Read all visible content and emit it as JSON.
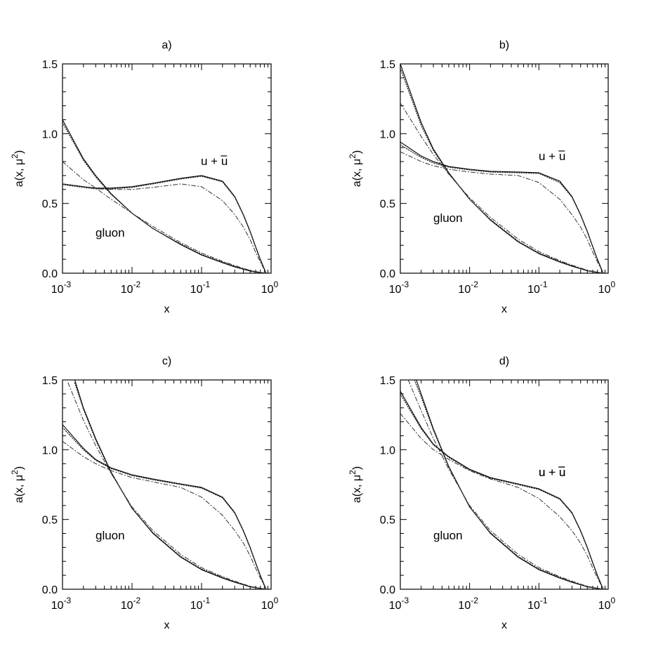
{
  "chart_data": [
    {
      "type": "line",
      "panel_label": "a)",
      "xlabel": "x",
      "ylabel": "a(x, μ2)",
      "xscale": "log",
      "xlim": [
        0.001,
        1
      ],
      "ylim": [
        0.0,
        1.5
      ],
      "xticks": [
        "10-3",
        "10-2",
        "10-1",
        "100"
      ],
      "yticks": [
        "0.0",
        "0.5",
        "1.0",
        "1.5"
      ],
      "annotations": [
        {
          "text": "u + u",
          "overbar_on": "second u"
        },
        {
          "text": "gluon"
        }
      ],
      "series": [
        {
          "group": "u+ubar",
          "style": "solid",
          "x": [
            0.001,
            0.002,
            0.003,
            0.005,
            0.01,
            0.02,
            0.05,
            0.1,
            0.2,
            0.3,
            0.4,
            0.5,
            0.6,
            0.7,
            0.8,
            0.85
          ],
          "y": [
            0.64,
            0.62,
            0.61,
            0.61,
            0.62,
            0.645,
            0.68,
            0.7,
            0.66,
            0.55,
            0.42,
            0.3,
            0.19,
            0.1,
            0.03,
            0.0
          ]
        },
        {
          "group": "u+ubar",
          "style": "dotted",
          "x": [
            0.001,
            0.002,
            0.003,
            0.005,
            0.01,
            0.02,
            0.05,
            0.1,
            0.2,
            0.3,
            0.4,
            0.5,
            0.6,
            0.7,
            0.8,
            0.85
          ],
          "y": [
            0.635,
            0.615,
            0.605,
            0.605,
            0.615,
            0.64,
            0.675,
            0.695,
            0.655,
            0.545,
            0.415,
            0.295,
            0.185,
            0.095,
            0.028,
            0.0
          ]
        },
        {
          "group": "u+ubar",
          "style": "dashdot",
          "x": [
            0.001,
            0.002,
            0.003,
            0.005,
            0.01,
            0.02,
            0.05,
            0.1,
            0.2,
            0.3,
            0.4,
            0.5,
            0.6,
            0.7,
            0.8,
            0.85
          ],
          "y": [
            0.64,
            0.62,
            0.605,
            0.6,
            0.6,
            0.615,
            0.64,
            0.62,
            0.52,
            0.42,
            0.33,
            0.24,
            0.15,
            0.08,
            0.025,
            0.0
          ]
        },
        {
          "group": "gluon",
          "style": "solid",
          "x": [
            0.001,
            0.002,
            0.003,
            0.005,
            0.01,
            0.02,
            0.05,
            0.1,
            0.2,
            0.3,
            0.5,
            0.7,
            0.85
          ],
          "y": [
            1.1,
            0.82,
            0.7,
            0.57,
            0.43,
            0.32,
            0.205,
            0.13,
            0.075,
            0.045,
            0.015,
            0.004,
            0.0
          ]
        },
        {
          "group": "gluon",
          "style": "dotted",
          "x": [
            0.001,
            0.002,
            0.003,
            0.005,
            0.01,
            0.02,
            0.05,
            0.1,
            0.2,
            0.3,
            0.5,
            0.7,
            0.85
          ],
          "y": [
            1.08,
            0.81,
            0.69,
            0.565,
            0.43,
            0.32,
            0.21,
            0.135,
            0.08,
            0.05,
            0.018,
            0.005,
            0.0
          ]
        },
        {
          "group": "gluon",
          "style": "dashdot",
          "x": [
            0.001,
            0.002,
            0.003,
            0.005,
            0.01,
            0.02,
            0.05,
            0.1,
            0.2,
            0.3,
            0.5,
            0.7,
            0.85
          ],
          "y": [
            0.8,
            0.67,
            0.61,
            0.53,
            0.43,
            0.335,
            0.22,
            0.145,
            0.085,
            0.055,
            0.02,
            0.006,
            0.0
          ]
        }
      ]
    },
    {
      "type": "line",
      "panel_label": "b)",
      "xlabel": "x",
      "ylabel": "a(x, μ2)",
      "xscale": "log",
      "xlim": [
        0.001,
        1
      ],
      "ylim": [
        0.0,
        1.5
      ],
      "xticks": [
        "10-3",
        "10-2",
        "10-1",
        "100"
      ],
      "yticks": [
        "0.0",
        "0.5",
        "1.0",
        "1.5"
      ],
      "annotations": [
        {
          "text": "u + u",
          "overbar_on": "second u"
        },
        {
          "text": "gluon"
        }
      ],
      "series": [
        {
          "group": "u+ubar",
          "style": "solid",
          "x": [
            0.001,
            0.002,
            0.003,
            0.005,
            0.01,
            0.02,
            0.05,
            0.1,
            0.2,
            0.3,
            0.4,
            0.5,
            0.6,
            0.7,
            0.8,
            0.85
          ],
          "y": [
            0.94,
            0.84,
            0.8,
            0.765,
            0.745,
            0.73,
            0.725,
            0.72,
            0.66,
            0.55,
            0.42,
            0.3,
            0.19,
            0.1,
            0.03,
            0.0
          ]
        },
        {
          "group": "u+ubar",
          "style": "dotted",
          "x": [
            0.001,
            0.002,
            0.003,
            0.005,
            0.01,
            0.02,
            0.05,
            0.1,
            0.2,
            0.3,
            0.4,
            0.5,
            0.6,
            0.7,
            0.8,
            0.85
          ],
          "y": [
            0.92,
            0.83,
            0.79,
            0.76,
            0.74,
            0.725,
            0.72,
            0.715,
            0.65,
            0.545,
            0.415,
            0.295,
            0.185,
            0.095,
            0.028,
            0.0
          ]
        },
        {
          "group": "u+ubar",
          "style": "dashdot",
          "x": [
            0.001,
            0.002,
            0.003,
            0.005,
            0.01,
            0.02,
            0.05,
            0.1,
            0.2,
            0.3,
            0.4,
            0.5,
            0.6,
            0.7,
            0.8,
            0.85
          ],
          "y": [
            0.87,
            0.8,
            0.77,
            0.745,
            0.725,
            0.71,
            0.7,
            0.65,
            0.53,
            0.42,
            0.33,
            0.24,
            0.15,
            0.08,
            0.025,
            0.0
          ]
        },
        {
          "group": "gluon",
          "style": "solid",
          "x": [
            0.001,
            0.002,
            0.003,
            0.005,
            0.01,
            0.02,
            0.05,
            0.1,
            0.2,
            0.3,
            0.5,
            0.7,
            0.85
          ],
          "y": [
            1.5,
            1.08,
            0.89,
            0.72,
            0.53,
            0.38,
            0.225,
            0.14,
            0.08,
            0.05,
            0.017,
            0.005,
            0.0
          ]
        },
        {
          "group": "gluon",
          "style": "dotted",
          "x": [
            0.001,
            0.002,
            0.003,
            0.005,
            0.01,
            0.02,
            0.05,
            0.1,
            0.2,
            0.3,
            0.5,
            0.7,
            0.85
          ],
          "y": [
            1.47,
            1.06,
            0.88,
            0.715,
            0.53,
            0.385,
            0.23,
            0.145,
            0.085,
            0.053,
            0.019,
            0.006,
            0.0
          ]
        },
        {
          "group": "gluon",
          "style": "dashdot",
          "x": [
            0.001,
            0.002,
            0.003,
            0.005,
            0.01,
            0.02,
            0.05,
            0.1,
            0.2,
            0.3,
            0.5,
            0.7,
            0.85
          ],
          "y": [
            1.22,
            0.98,
            0.85,
            0.71,
            0.54,
            0.4,
            0.245,
            0.155,
            0.09,
            0.058,
            0.021,
            0.007,
            0.0
          ]
        }
      ]
    },
    {
      "type": "line",
      "panel_label": "c)",
      "xlabel": "x",
      "ylabel": "a(x, μ2)",
      "xscale": "log",
      "xlim": [
        0.001,
        1
      ],
      "ylim": [
        0.0,
        1.5
      ],
      "xticks": [
        "10-3",
        "10-2",
        "10-1",
        "100"
      ],
      "yticks": [
        "0.0",
        "0.5",
        "1.0",
        "1.5"
      ],
      "annotations": [
        {
          "text": "u + u",
          "overbar_on": "second u"
        },
        {
          "text": "gluon"
        }
      ],
      "series": [
        {
          "group": "u+ubar",
          "style": "solid",
          "x": [
            0.001,
            0.002,
            0.003,
            0.005,
            0.01,
            0.02,
            0.05,
            0.1,
            0.2,
            0.3,
            0.4,
            0.5,
            0.6,
            0.7,
            0.8,
            0.85
          ],
          "y": [
            1.18,
            1.01,
            0.93,
            0.87,
            0.82,
            0.79,
            0.755,
            0.73,
            0.66,
            0.55,
            0.42,
            0.3,
            0.19,
            0.1,
            0.03,
            0.0
          ]
        },
        {
          "group": "u+ubar",
          "style": "dotted",
          "x": [
            0.001,
            0.002,
            0.003,
            0.005,
            0.01,
            0.02,
            0.05,
            0.1,
            0.2,
            0.3,
            0.4,
            0.5,
            0.6,
            0.7,
            0.8,
            0.85
          ],
          "y": [
            1.16,
            1.0,
            0.925,
            0.865,
            0.815,
            0.785,
            0.75,
            0.725,
            0.655,
            0.545,
            0.415,
            0.295,
            0.185,
            0.095,
            0.028,
            0.0
          ]
        },
        {
          "group": "u+ubar",
          "style": "dashdot",
          "x": [
            0.001,
            0.002,
            0.003,
            0.005,
            0.01,
            0.02,
            0.05,
            0.1,
            0.2,
            0.3,
            0.4,
            0.5,
            0.6,
            0.7,
            0.8,
            0.85
          ],
          "y": [
            1.06,
            0.95,
            0.9,
            0.85,
            0.8,
            0.77,
            0.73,
            0.66,
            0.53,
            0.42,
            0.33,
            0.24,
            0.15,
            0.08,
            0.025,
            0.0
          ]
        },
        {
          "group": "gluon",
          "style": "solid",
          "x": [
            0.0015,
            0.002,
            0.003,
            0.005,
            0.01,
            0.02,
            0.05,
            0.1,
            0.2,
            0.3,
            0.5,
            0.7,
            0.85
          ],
          "y": [
            1.5,
            1.3,
            1.08,
            0.84,
            0.58,
            0.4,
            0.23,
            0.14,
            0.08,
            0.05,
            0.017,
            0.005,
            0.0
          ]
        },
        {
          "group": "gluon",
          "style": "dotted",
          "x": [
            0.0015,
            0.002,
            0.003,
            0.005,
            0.01,
            0.02,
            0.05,
            0.1,
            0.2,
            0.3,
            0.5,
            0.7,
            0.85
          ],
          "y": [
            1.48,
            1.29,
            1.07,
            0.835,
            0.58,
            0.405,
            0.235,
            0.145,
            0.085,
            0.053,
            0.019,
            0.006,
            0.0
          ]
        },
        {
          "group": "gluon",
          "style": "dashdot",
          "x": [
            0.0012,
            0.002,
            0.003,
            0.005,
            0.01,
            0.02,
            0.05,
            0.1,
            0.2,
            0.3,
            0.5,
            0.7,
            0.85
          ],
          "y": [
            1.48,
            1.21,
            1.03,
            0.83,
            0.59,
            0.42,
            0.25,
            0.155,
            0.09,
            0.058,
            0.021,
            0.007,
            0.0
          ]
        }
      ]
    },
    {
      "type": "line",
      "panel_label": "d)",
      "xlabel": "x",
      "ylabel": "a(x, μ2)",
      "xscale": "log",
      "xlim": [
        0.001,
        1
      ],
      "ylim": [
        0.0,
        1.5
      ],
      "xticks": [
        "10-3",
        "10-2",
        "10-1",
        "100"
      ],
      "yticks": [
        "0.0",
        "0.5",
        "1.0",
        "1.5"
      ],
      "annotations": [
        {
          "text": "u + u",
          "overbar_on": "second u"
        },
        {
          "text": "gluon"
        }
      ],
      "series": [
        {
          "group": "u+ubar",
          "style": "solid",
          "x": [
            0.001,
            0.002,
            0.003,
            0.005,
            0.01,
            0.02,
            0.05,
            0.1,
            0.2,
            0.3,
            0.4,
            0.5,
            0.6,
            0.7,
            0.8,
            0.85
          ],
          "y": [
            1.42,
            1.16,
            1.04,
            0.95,
            0.86,
            0.8,
            0.755,
            0.72,
            0.65,
            0.55,
            0.42,
            0.3,
            0.19,
            0.1,
            0.03,
            0.0
          ]
        },
        {
          "group": "u+ubar",
          "style": "dotted",
          "x": [
            0.001,
            0.002,
            0.003,
            0.005,
            0.01,
            0.02,
            0.05,
            0.1,
            0.2,
            0.3,
            0.4,
            0.5,
            0.6,
            0.7,
            0.8,
            0.85
          ],
          "y": [
            1.4,
            1.15,
            1.035,
            0.945,
            0.855,
            0.795,
            0.75,
            0.715,
            0.645,
            0.545,
            0.415,
            0.295,
            0.185,
            0.095,
            0.028,
            0.0
          ]
        },
        {
          "group": "u+ubar",
          "style": "dashdot",
          "x": [
            0.001,
            0.002,
            0.003,
            0.005,
            0.01,
            0.02,
            0.05,
            0.1,
            0.2,
            0.3,
            0.4,
            0.5,
            0.6,
            0.7,
            0.8,
            0.85
          ],
          "y": [
            1.26,
            1.08,
            1.0,
            0.93,
            0.85,
            0.79,
            0.73,
            0.65,
            0.52,
            0.42,
            0.33,
            0.24,
            0.15,
            0.08,
            0.025,
            0.0
          ]
        },
        {
          "group": "gluon",
          "style": "solid",
          "x": [
            0.0017,
            0.002,
            0.003,
            0.005,
            0.01,
            0.02,
            0.05,
            0.1,
            0.2,
            0.3,
            0.5,
            0.7,
            0.85
          ],
          "y": [
            1.5,
            1.4,
            1.15,
            0.88,
            0.59,
            0.4,
            0.23,
            0.14,
            0.08,
            0.05,
            0.017,
            0.005,
            0.0
          ]
        },
        {
          "group": "gluon",
          "style": "dotted",
          "x": [
            0.0016,
            0.002,
            0.003,
            0.005,
            0.01,
            0.02,
            0.05,
            0.1,
            0.2,
            0.3,
            0.5,
            0.7,
            0.85
          ],
          "y": [
            1.5,
            1.38,
            1.14,
            0.875,
            0.59,
            0.405,
            0.235,
            0.145,
            0.085,
            0.053,
            0.019,
            0.006,
            0.0
          ]
        },
        {
          "group": "gluon",
          "style": "dashdot",
          "x": [
            0.0013,
            0.002,
            0.003,
            0.005,
            0.01,
            0.02,
            0.05,
            0.1,
            0.2,
            0.3,
            0.5,
            0.7,
            0.85
          ],
          "y": [
            1.5,
            1.28,
            1.08,
            0.86,
            0.6,
            0.42,
            0.25,
            0.155,
            0.09,
            0.058,
            0.021,
            0.007,
            0.0
          ]
        }
      ]
    }
  ]
}
